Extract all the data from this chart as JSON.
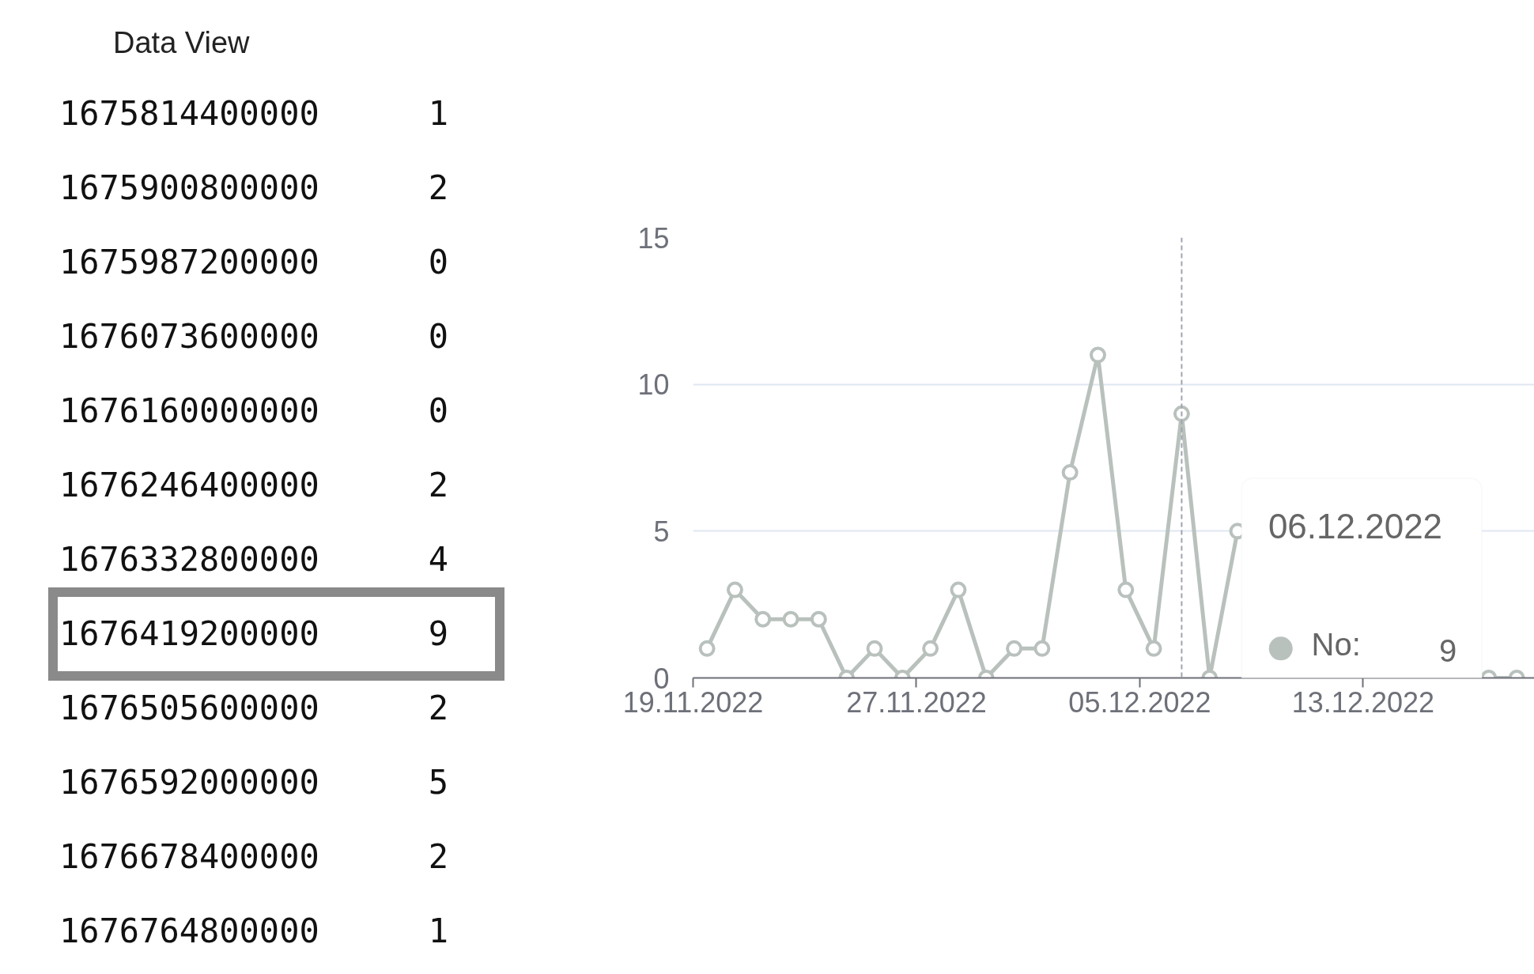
{
  "chart_data": {
    "type": "line",
    "x": [
      "2022-11-19T12:00",
      "2022-11-20T12:00",
      "2022-11-21T12:00",
      "2022-11-22T12:00",
      "2022-11-23T12:00",
      "2022-11-24T12:00",
      "2022-11-25T12:00",
      "2022-11-26T12:00",
      "2022-11-27T12:00",
      "2022-11-28T12:00",
      "2022-11-29T12:00",
      "2022-11-30T12:00",
      "2022-12-01T12:00",
      "2022-12-02T12:00",
      "2022-12-03T12:00",
      "2022-12-04T12:00",
      "2022-12-05T12:00",
      "2022-12-06T12:00",
      "2022-12-07T12:00",
      "2022-12-08T12:00",
      "2022-12-09T12:00",
      "2022-12-10T12:00",
      "2022-12-11T12:00",
      "2022-12-12T12:00",
      "2022-12-13T12:00",
      "2022-12-14T12:00",
      "2022-12-15T12:00",
      "2022-12-16T12:00",
      "2022-12-17T12:00",
      "2022-12-18T12:00"
    ],
    "series": [
      {
        "name": "No:",
        "color": "#b9c1bd",
        "values": [
          1,
          3,
          2,
          2,
          2,
          0,
          1,
          0,
          1,
          3,
          0,
          1,
          1,
          7,
          11,
          3,
          1,
          9,
          0,
          5,
          null,
          null,
          null,
          null,
          null,
          null,
          null,
          null,
          0,
          0
        ]
      }
    ],
    "xlim": [
      "2022-11-19T00:00",
      "2022-12-19T10:00"
    ],
    "xticks": [
      {
        "value": "2022-11-19",
        "label": "19.11.2022"
      },
      {
        "value": "2022-11-27",
        "label": "27.11.2022"
      },
      {
        "value": "2022-12-05",
        "label": "05.12.2022"
      },
      {
        "value": "2022-12-13",
        "label": "13.12.2022"
      }
    ],
    "ylim": [
      0,
      15
    ],
    "yticks": [
      0,
      5,
      10,
      15
    ],
    "grid": "y",
    "marker": "circle",
    "line_style": "solid",
    "legend": "bottom right",
    "ref_lines": [
      {
        "axis": "x",
        "value": "2022-12-06T12:00",
        "label": "06.12.2022",
        "line_style": "dashed",
        "color": "#a0a4ad"
      }
    ],
    "annotations": [
      "9",
      "Data View",
      "1675814400000 1",
      "1675900800000 2",
      "1675987200000 0",
      "1676073600000 0",
      "1676160000000 0",
      "1676246400000 2",
      "1676332800000 4",
      "1676419200000 9",
      "1676505600000 2",
      "1676592000000 5",
      "1676678400000 2",
      "1676764800000 1"
    ]
  }
}
